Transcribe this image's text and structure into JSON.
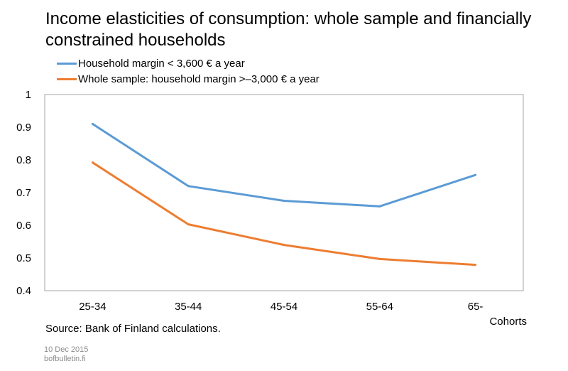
{
  "title": "Income elasticities of consumption: whole sample and financially constrained households",
  "source": "Source: Bank of Finland calculations.",
  "date": "10 Dec 2015",
  "site": "bofbulletin.fi",
  "chart_data": {
    "type": "line",
    "title": "Income elasticities of consumption: whole sample and financially constrained households",
    "xlabel": "Cohorts",
    "ylabel": "",
    "categories": [
      "25-34",
      "35-44",
      "45-54",
      "55-64",
      "65-"
    ],
    "yticks": [
      "0.4",
      "0.5",
      "0.6",
      "0.7",
      "0.8",
      "0.9",
      "1"
    ],
    "ylim": [
      0.4,
      1
    ],
    "grid": false,
    "legend_position": "top-left",
    "series": [
      {
        "name": "Household margin < 3,600 € a year",
        "color": "#5b9bd5",
        "values": [
          0.91,
          0.72,
          0.675,
          0.658,
          0.754
        ]
      },
      {
        "name": "Whole sample: household margin >–3,000 € a year",
        "color": "#ed7d31",
        "values": [
          0.792,
          0.603,
          0.54,
          0.497,
          0.479
        ]
      }
    ]
  }
}
